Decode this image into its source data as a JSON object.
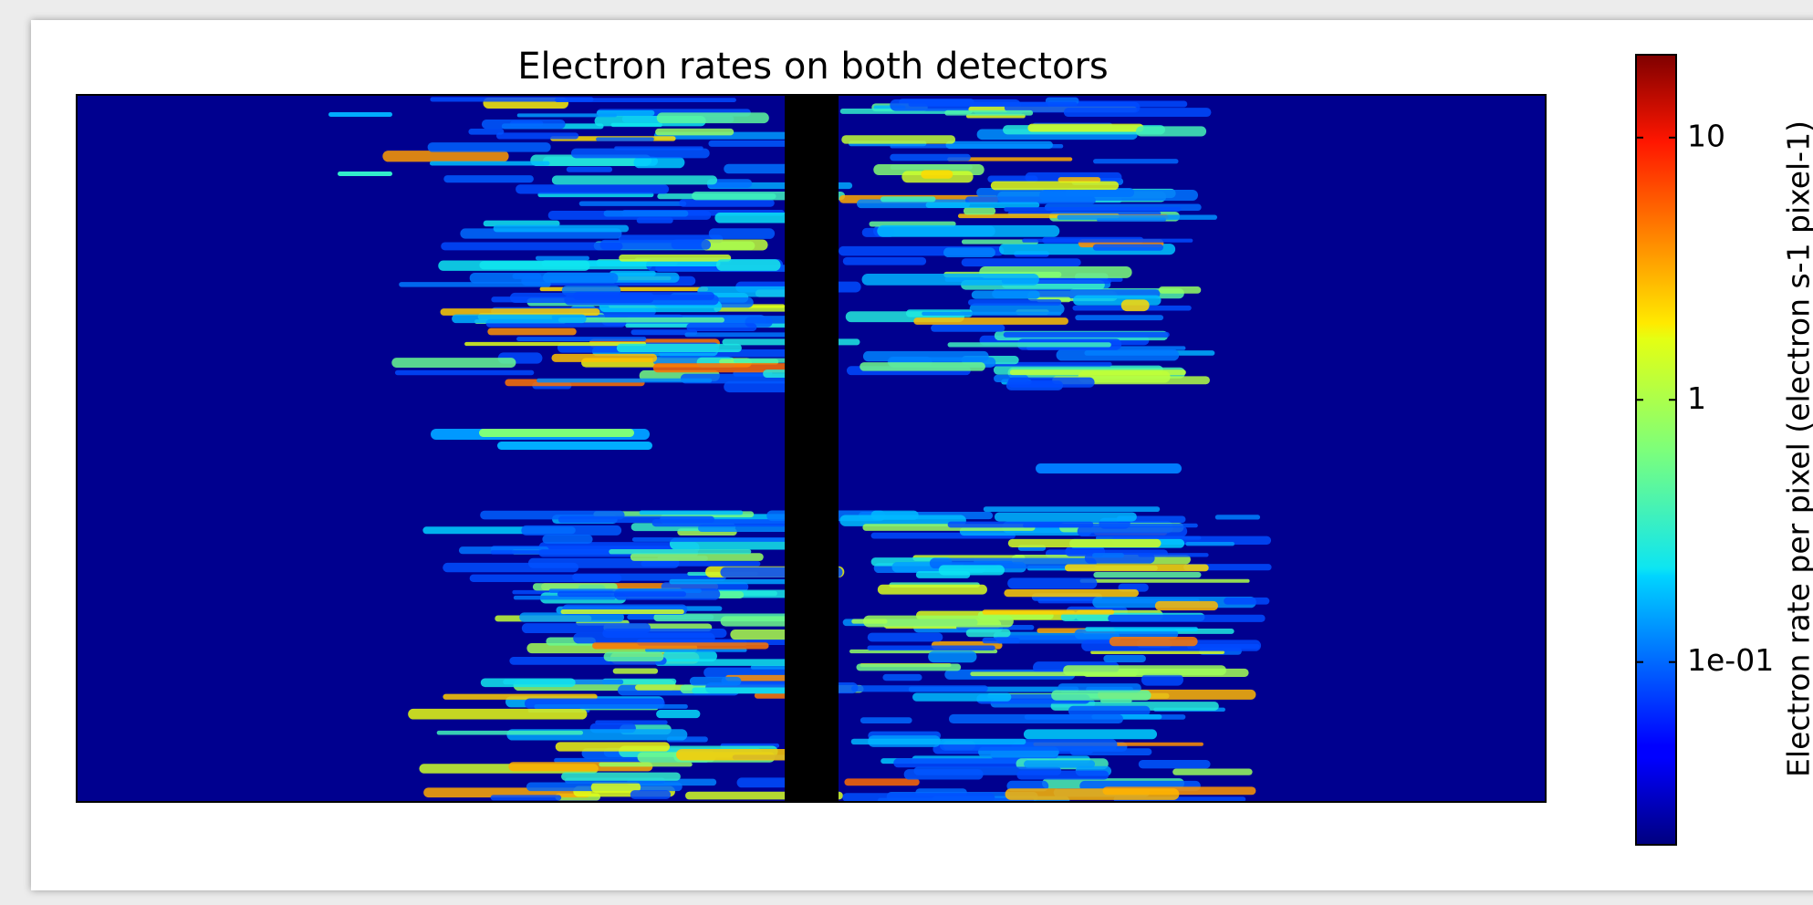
{
  "chart_data": {
    "type": "heatmap",
    "title": "Electron rates on both detectors",
    "colorbar": {
      "label": "Electron rate per pixel (electron s-1 pixel-1)",
      "scale": "log",
      "colormap": "jet",
      "lim": [
        0.0201,
        20.7
      ],
      "ticks": [
        {
          "value": 0.1,
          "label": "1e-01"
        },
        1,
        10
      ]
    }
  }
}
